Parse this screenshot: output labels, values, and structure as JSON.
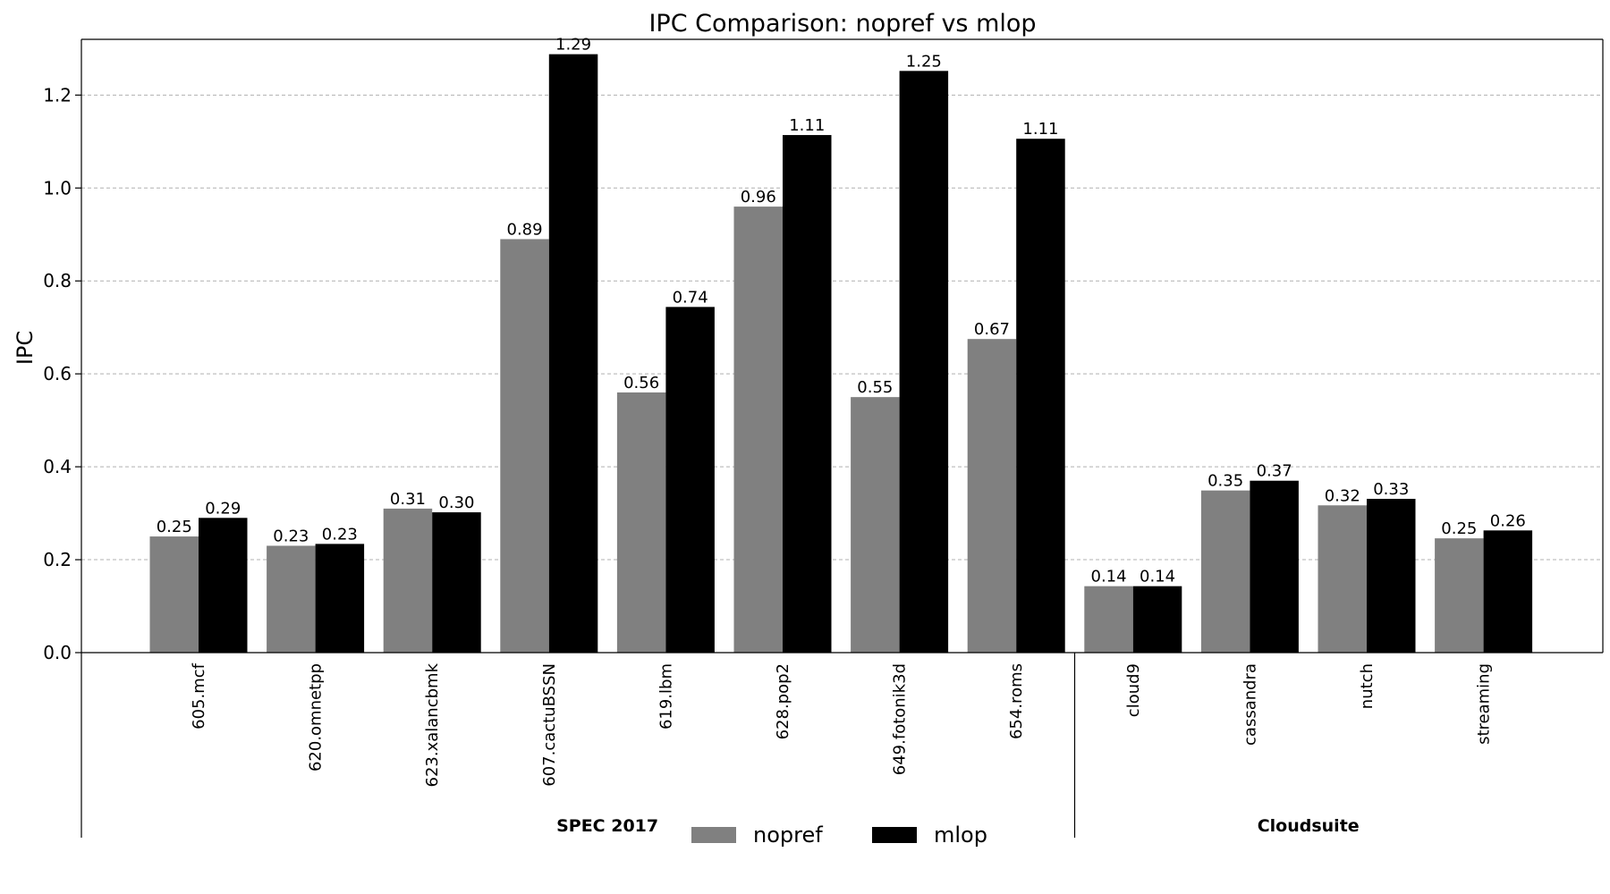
{
  "chart_data": {
    "type": "bar",
    "title": "IPC Comparison: nopref vs mlop",
    "xlabel": "",
    "ylabel": "IPC",
    "ylim": [
      0,
      1.32
    ],
    "yticks": [
      0.0,
      0.2,
      0.4,
      0.6,
      0.8,
      1.0,
      1.2
    ],
    "ytick_labels": [
      "0.0",
      "0.2",
      "0.4",
      "0.6",
      "0.8",
      "1.0",
      "1.2"
    ],
    "grid": "y-dashed",
    "legend_position": "bottom-center",
    "categories": [
      "605.mcf",
      "620.omnetpp",
      "623.xalancbmk",
      "607.cactuBSSN",
      "619.lbm",
      "628.pop2",
      "649.fotonik3d",
      "654.roms",
      "cloud9",
      "cassandra",
      "nutch",
      "streaming"
    ],
    "groups": [
      {
        "label": "SPEC 2017",
        "start": 0,
        "end": 7
      },
      {
        "label": "Cloudsuite",
        "start": 8,
        "end": 11
      }
    ],
    "series": [
      {
        "name": "nopref",
        "color": "#808080",
        "values": [
          0.25,
          0.23,
          0.31,
          0.89,
          0.56,
          0.96,
          0.55,
          0.675,
          0.143,
          0.349,
          0.317,
          0.246
        ],
        "labels": [
          "0.25",
          "0.23",
          "0.31",
          "0.89",
          "0.56",
          "0.96",
          "0.55",
          "0.67",
          "0.14",
          "0.35",
          "0.32",
          "0.25"
        ]
      },
      {
        "name": "mlop",
        "color": "#000000",
        "values": [
          0.29,
          0.234,
          0.302,
          1.288,
          0.744,
          1.114,
          1.252,
          1.106,
          0.143,
          0.37,
          0.331,
          0.263
        ],
        "labels": [
          "0.29",
          "0.23",
          "0.30",
          "1.29",
          "0.74",
          "1.11",
          "1.25",
          "1.11",
          "0.14",
          "0.37",
          "0.33",
          "0.26"
        ]
      }
    ]
  }
}
